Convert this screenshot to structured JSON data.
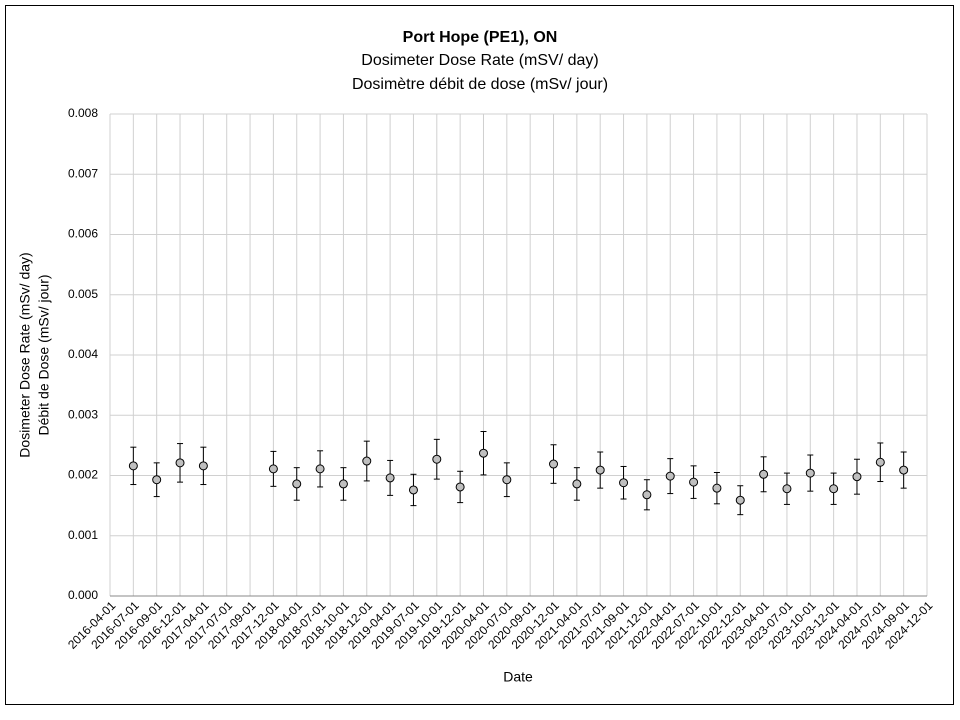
{
  "chart_data": {
    "type": "scatter",
    "title": "Port Hope (PE1), ON",
    "subtitle": [
      "Dosimeter Dose Rate (mSV/ day)",
      "Dosimètre débit de dose (mSv/ jour)"
    ],
    "x_label": "Date",
    "y_label": [
      "Dosimeter Dose Rate (mSv/ day)",
      "Débit de Dose (mSv/ jour)"
    ],
    "categories": [
      "2016-04-01",
      "2016-07-01",
      "2016-09-01",
      "2016-12-01",
      "2017-04-01",
      "2017-07-01",
      "2017-09-01",
      "2017-12-01",
      "2018-04-01",
      "2018-07-01",
      "2018-10-01",
      "2018-12-01",
      "2019-04-01",
      "2019-07-01",
      "2019-10-01",
      "2019-12-01",
      "2020-04-01",
      "2020-07-01",
      "2020-09-01",
      "2020-12-01",
      "2021-04-01",
      "2021-07-01",
      "2021-09-01",
      "2021-12-01",
      "2022-04-01",
      "2022-07-01",
      "2022-10-01",
      "2022-12-01",
      "2023-04-01",
      "2023-07-01",
      "2023-10-01",
      "2023-12-01",
      "2024-04-01",
      "2024-07-01",
      "2024-09-01",
      "2024-12-01"
    ],
    "values": [
      null,
      0.00216,
      0.00193,
      0.00221,
      0.00216,
      null,
      null,
      0.00211,
      0.00186,
      0.00211,
      0.00186,
      0.00224,
      0.00196,
      0.00176,
      0.00227,
      0.00181,
      0.00237,
      0.00193,
      null,
      0.00219,
      0.00186,
      0.00209,
      0.00188,
      0.00168,
      0.00199,
      0.00189,
      0.00179,
      0.00159,
      0.00202,
      0.00178,
      0.00204,
      0.00178,
      0.00198,
      0.00222,
      0.00209,
      null
    ],
    "errors": [
      null,
      0.00031,
      0.00028,
      0.00032,
      0.00031,
      null,
      null,
      0.00029,
      0.00027,
      0.0003,
      0.00027,
      0.00033,
      0.00029,
      0.00026,
      0.00033,
      0.00026,
      0.00036,
      0.00028,
      null,
      0.00032,
      0.00027,
      0.0003,
      0.00027,
      0.00025,
      0.00029,
      0.00027,
      0.00026,
      0.00024,
      0.00029,
      0.00026,
      0.0003,
      0.00026,
      0.00029,
      0.00032,
      0.0003,
      null
    ],
    "color": "#bfbfbf",
    "ylim": [
      0,
      0.008
    ],
    "yticks": [
      {
        "value": 0,
        "label": "0.000"
      },
      0.001,
      0.002,
      0.003,
      0.004,
      0.005,
      0.006,
      0.007,
      0.008
    ],
    "grid": true
  }
}
